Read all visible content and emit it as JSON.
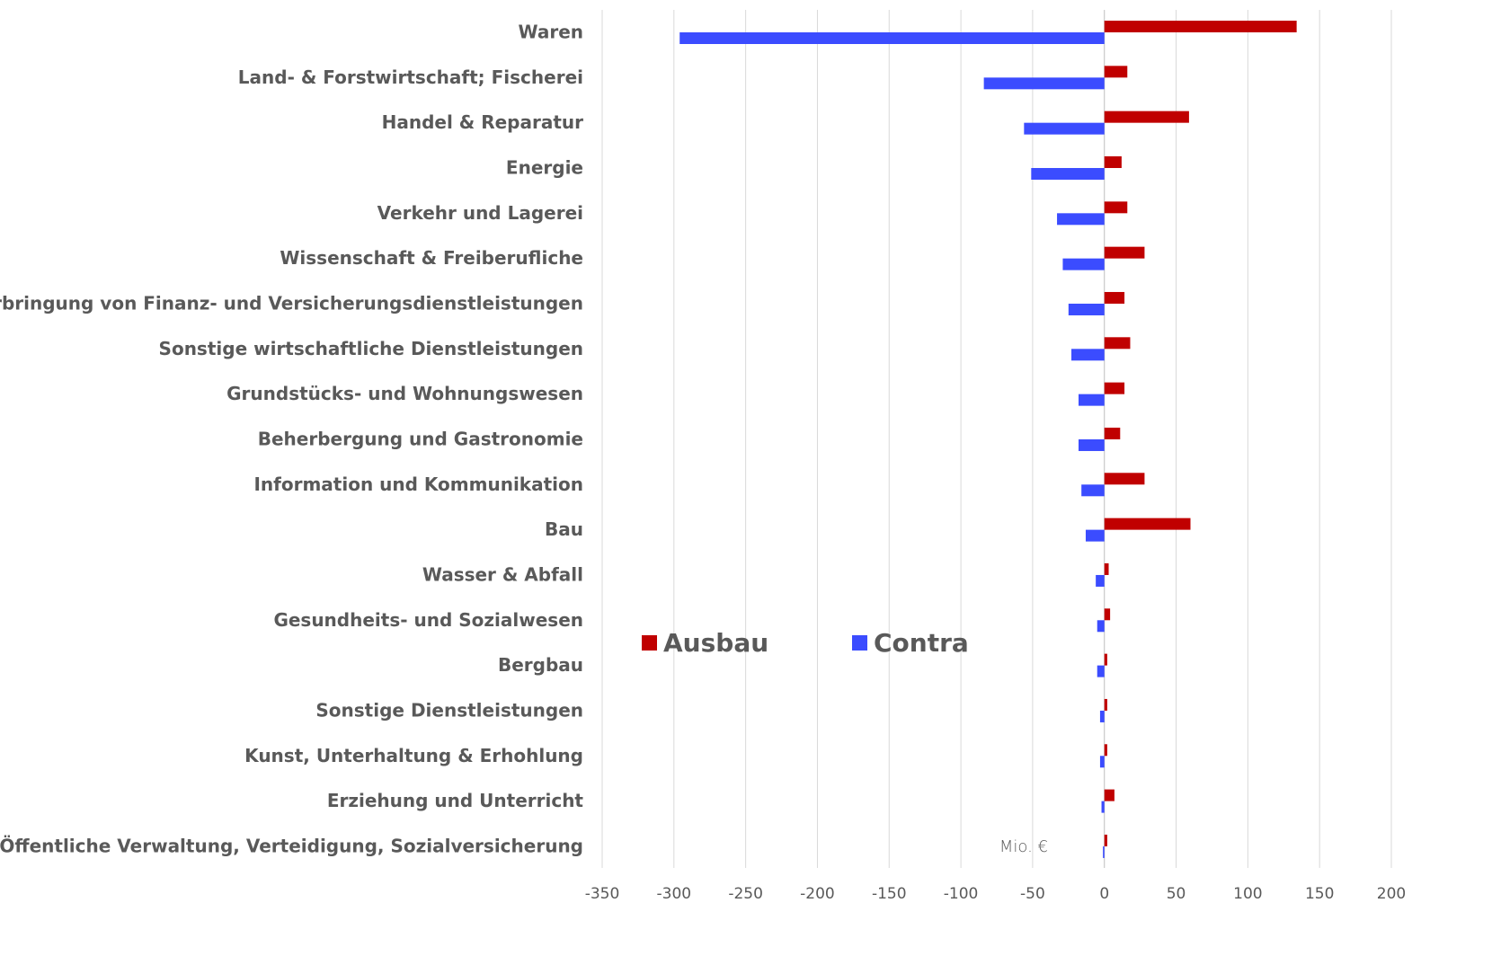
{
  "chart_data": {
    "type": "hbar",
    "categories": [
      "Waren",
      "Land- & Forstwirtschaft; Fischerei",
      "Handel & Reparatur",
      "Energie",
      "Verkehr und Lagerei",
      "Wissenschaft & Freiberufliche",
      "Erbringung von Finanz- und Versicherungsdienstleistungen",
      "Sonstige wirtschaftliche Dienstleistungen",
      "Grundstücks- und Wohnungswesen",
      "Beherbergung und Gastronomie",
      "Information und Kommunikation",
      "Bau",
      "Wasser & Abfall",
      "Gesundheits- und Sozialwesen",
      "Bergbau",
      "Sonstige Dienstleistungen",
      "Kunst, Unterhaltung & Erhohlung",
      "Erziehung und Unterricht",
      "Öffentliche Verwaltung, Verteidigung, Sozialversicherung"
    ],
    "series": [
      {
        "name": "Ausbau",
        "color": "#c00000",
        "values": [
          134,
          16,
          59,
          12,
          16,
          28,
          14,
          18,
          14,
          11,
          28,
          60,
          3,
          4,
          2,
          2,
          2,
          7,
          2
        ]
      },
      {
        "name": "Contra",
        "color": "#3b4cff",
        "values": [
          -296,
          -84,
          -56,
          -51,
          -33,
          -29,
          -25,
          -23,
          -18,
          -18,
          -16,
          -13,
          -6,
          -5,
          -5,
          -3,
          -3,
          -2,
          -1
        ]
      }
    ],
    "xlim": [
      -350,
      200
    ],
    "xticks": [
      -350,
      -300,
      -250,
      -200,
      -150,
      -100,
      -50,
      0,
      50,
      100,
      150,
      200
    ],
    "grid": true,
    "legend": "center",
    "annotation": "Mio. €"
  }
}
